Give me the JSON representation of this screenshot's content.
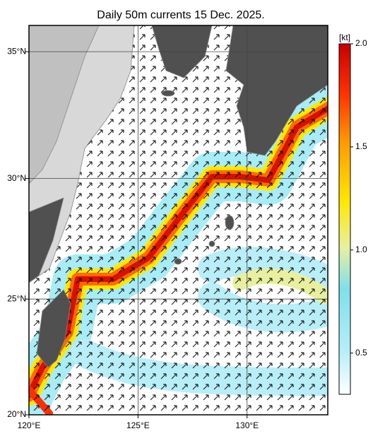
{
  "map": {
    "title": "Daily 50m currents 15 Dec. 2025.",
    "lonlim": [
      120,
      133.7
    ],
    "latlim": [
      20,
      36
    ],
    "lonticks": [
      {
        "value": 120,
        "label": "120°E"
      },
      {
        "value": 125,
        "label": "125°E"
      },
      {
        "value": 130,
        "label": "130°E"
      }
    ],
    "latticks": [
      {
        "value": 20,
        "label": "20°N"
      },
      {
        "value": 25,
        "label": "25°N"
      },
      {
        "value": 30,
        "label": "30°N"
      },
      {
        "value": 35,
        "label": "35°N"
      }
    ],
    "colorbar": {
      "unit": "[kt]",
      "lim": [
        0.3,
        2.0
      ],
      "ticks": [
        {
          "value": 0.5,
          "label": "0.5"
        },
        {
          "value": 1.0,
          "label": "1.0"
        },
        {
          "value": 1.5,
          "label": "1.5"
        },
        {
          "value": 2.0,
          "label": "2.0"
        }
      ]
    }
  }
}
